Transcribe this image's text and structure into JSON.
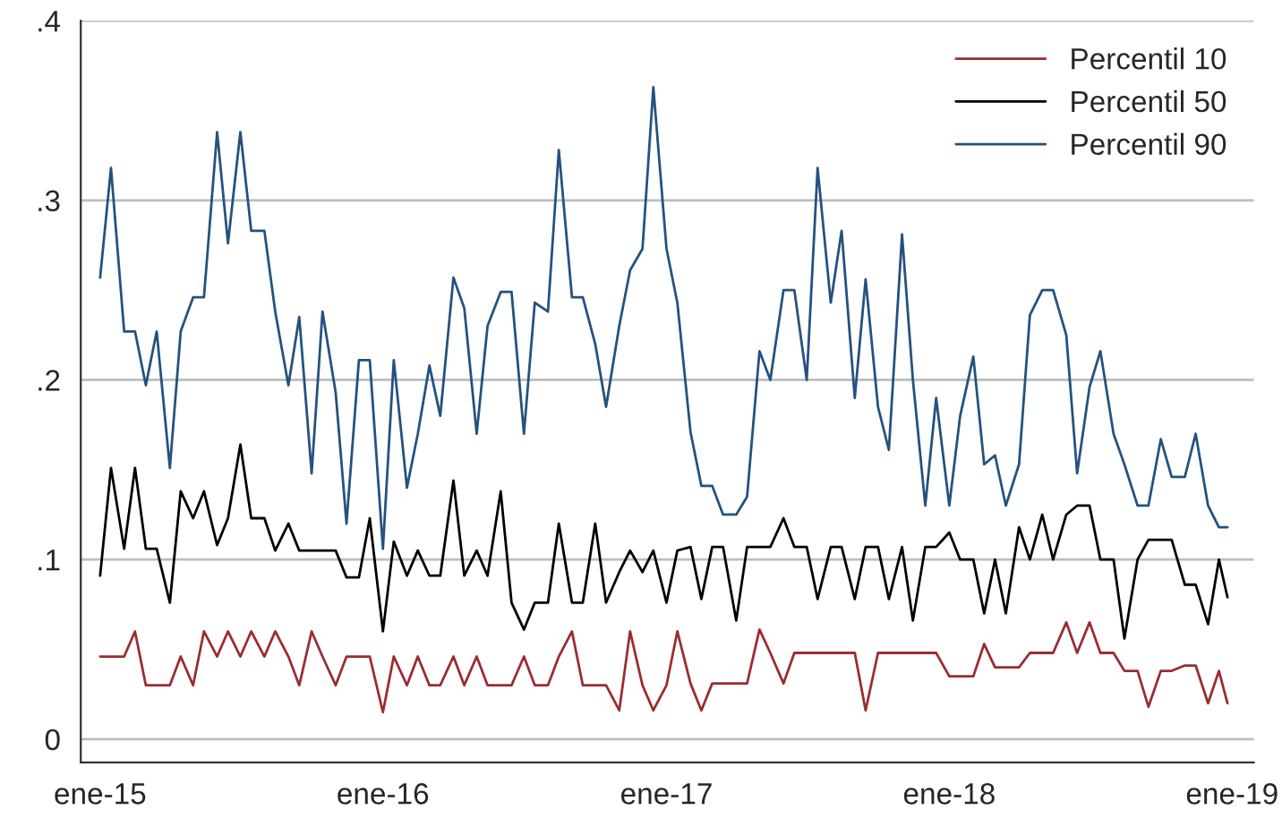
{
  "chart_data": {
    "type": "line",
    "x": [
      "2015-01-01",
      "2015-01-15",
      "2015-02-01",
      "2015-02-15",
      "2015-03-01",
      "2015-03-15",
      "2015-04-01",
      "2015-04-15",
      "2015-05-01",
      "2015-05-15",
      "2015-06-01",
      "2015-06-15",
      "2015-07-01",
      "2015-07-15",
      "2015-08-01",
      "2015-08-15",
      "2015-09-01",
      "2015-09-15",
      "2015-10-01",
      "2015-10-15",
      "2015-11-01",
      "2015-11-15",
      "2015-12-01",
      "2015-12-15",
      "2016-01-01",
      "2016-01-15",
      "2016-02-01",
      "2016-02-15",
      "2016-03-01",
      "2016-03-15",
      "2016-04-01",
      "2016-04-15",
      "2016-05-01",
      "2016-05-15",
      "2016-06-01",
      "2016-06-15",
      "2016-07-01",
      "2016-07-15",
      "2016-08-01",
      "2016-08-15",
      "2016-09-01",
      "2016-09-15",
      "2016-10-01",
      "2016-10-15",
      "2016-11-01",
      "2016-11-15",
      "2016-12-01",
      "2016-12-15",
      "2017-01-01",
      "2017-01-15",
      "2017-02-01",
      "2017-02-15",
      "2017-03-01",
      "2017-03-15",
      "2017-04-01",
      "2017-04-15",
      "2017-05-01",
      "2017-05-15",
      "2017-06-01",
      "2017-06-15",
      "2017-07-01",
      "2017-07-15",
      "2017-08-01",
      "2017-08-15",
      "2017-09-01",
      "2017-09-15",
      "2017-10-01",
      "2017-10-15",
      "2017-11-01",
      "2017-11-15",
      "2017-12-01",
      "2017-12-15",
      "2018-01-01",
      "2018-01-15",
      "2018-02-01",
      "2018-02-15",
      "2018-03-01",
      "2018-03-15",
      "2018-04-01",
      "2018-04-15",
      "2018-05-01",
      "2018-05-15",
      "2018-06-01",
      "2018-06-15",
      "2018-07-01",
      "2018-07-15",
      "2018-08-01",
      "2018-08-15",
      "2018-09-01",
      "2018-09-15",
      "2018-10-01",
      "2018-10-15",
      "2018-11-01",
      "2018-11-15",
      "2018-12-01",
      "2018-12-15",
      "2018-12-26"
    ],
    "series": [
      {
        "name": "Percentil 10",
        "color": "#9b2c31",
        "values": [
          0.046,
          0.046,
          0.046,
          0.06,
          0.03,
          0.03,
          0.03,
          0.046,
          0.03,
          0.06,
          0.046,
          0.06,
          0.046,
          0.06,
          0.046,
          0.06,
          0.046,
          0.03,
          0.06,
          0.046,
          0.03,
          0.046,
          0.046,
          0.046,
          0.015,
          0.046,
          0.03,
          0.046,
          0.03,
          0.03,
          0.046,
          0.03,
          0.046,
          0.03,
          0.03,
          0.03,
          0.046,
          0.03,
          0.03,
          0.046,
          0.06,
          0.03,
          0.03,
          0.03,
          0.016,
          0.06,
          0.03,
          0.016,
          0.03,
          0.06,
          0.031,
          0.016,
          0.031,
          0.031,
          0.031,
          0.031,
          0.061,
          0.048,
          0.031,
          0.048,
          0.048,
          0.048,
          0.048,
          0.048,
          0.048,
          0.016,
          0.048,
          0.048,
          0.048,
          0.048,
          0.048,
          0.048,
          0.035,
          0.035,
          0.035,
          0.053,
          0.04,
          0.04,
          0.04,
          0.048,
          0.048,
          0.048,
          0.065,
          0.048,
          0.065,
          0.048,
          0.048,
          0.038,
          0.038,
          0.018,
          0.038,
          0.038,
          0.041,
          0.041,
          0.02,
          0.038,
          0.02
        ]
      },
      {
        "name": "Percentil 50",
        "color": "#000000",
        "values": [
          0.091,
          0.151,
          0.106,
          0.151,
          0.106,
          0.106,
          0.076,
          0.138,
          0.123,
          0.138,
          0.108,
          0.123,
          0.164,
          0.123,
          0.123,
          0.105,
          0.12,
          0.105,
          0.105,
          0.105,
          0.105,
          0.09,
          0.09,
          0.123,
          0.06,
          0.11,
          0.091,
          0.105,
          0.091,
          0.091,
          0.144,
          0.091,
          0.105,
          0.091,
          0.138,
          0.076,
          0.061,
          0.076,
          0.076,
          0.12,
          0.076,
          0.076,
          0.12,
          0.076,
          0.093,
          0.105,
          0.093,
          0.105,
          0.076,
          0.105,
          0.107,
          0.078,
          0.107,
          0.107,
          0.066,
          0.107,
          0.107,
          0.107,
          0.123,
          0.107,
          0.107,
          0.078,
          0.107,
          0.107,
          0.078,
          0.107,
          0.107,
          0.078,
          0.107,
          0.066,
          0.107,
          0.107,
          0.115,
          0.1,
          0.1,
          0.07,
          0.1,
          0.07,
          0.118,
          0.1,
          0.125,
          0.1,
          0.125,
          0.13,
          0.13,
          0.1,
          0.1,
          0.056,
          0.1,
          0.111,
          0.111,
          0.111,
          0.086,
          0.086,
          0.064,
          0.1,
          0.079
        ]
      },
      {
        "name": "Percentil 90",
        "color": "#24527f",
        "values": [
          0.257,
          0.318,
          0.227,
          0.227,
          0.197,
          0.227,
          0.151,
          0.227,
          0.246,
          0.246,
          0.338,
          0.276,
          0.338,
          0.283,
          0.283,
          0.238,
          0.197,
          0.235,
          0.148,
          0.238,
          0.193,
          0.12,
          0.211,
          0.211,
          0.106,
          0.211,
          0.14,
          0.17,
          0.208,
          0.18,
          0.257,
          0.24,
          0.17,
          0.23,
          0.249,
          0.249,
          0.17,
          0.243,
          0.238,
          0.328,
          0.246,
          0.246,
          0.22,
          0.185,
          0.23,
          0.261,
          0.273,
          0.363,
          0.273,
          0.243,
          0.171,
          0.141,
          0.141,
          0.125,
          0.125,
          0.135,
          0.216,
          0.2,
          0.25,
          0.25,
          0.2,
          0.318,
          0.243,
          0.283,
          0.19,
          0.256,
          0.185,
          0.161,
          0.281,
          0.2,
          0.13,
          0.19,
          0.13,
          0.18,
          0.213,
          0.153,
          0.158,
          0.13,
          0.153,
          0.236,
          0.25,
          0.25,
          0.225,
          0.148,
          0.196,
          0.216,
          0.17,
          0.153,
          0.13,
          0.13,
          0.167,
          0.146,
          0.146,
          0.17,
          0.13,
          0.118,
          0.118
        ]
      }
    ],
    "xlim": [
      "2014-12-07",
      "2019-01-29"
    ],
    "xticks": [
      {
        "value": "2015-01-01",
        "label": "ene-15"
      },
      {
        "value": "2016-01-01",
        "label": "ene-16"
      },
      {
        "value": "2017-01-01",
        "label": "ene-17"
      },
      {
        "value": "2018-01-01",
        "label": "ene-18"
      },
      {
        "value": "2019-01-01",
        "label": "ene-19"
      }
    ],
    "ylim": [
      -0.013,
      0.4
    ],
    "yticks": [
      {
        "value": 0,
        "label": "0"
      },
      {
        "value": 0.1,
        "label": ".1"
      },
      {
        "value": 0.2,
        "label": ".2"
      },
      {
        "value": 0.3,
        "label": ".3"
      },
      {
        "value": 0.4,
        "label": ".4"
      }
    ],
    "grid": "y",
    "legend": "top right",
    "marker": "none",
    "line_style": "solid"
  }
}
